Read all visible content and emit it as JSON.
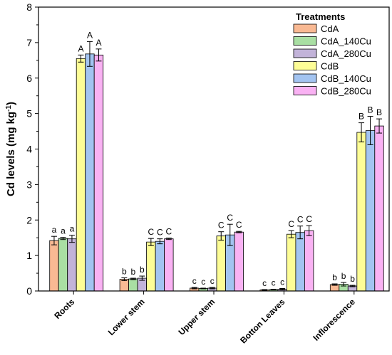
{
  "chart_data": {
    "type": "bar",
    "title": "",
    "xlabel": "",
    "ylabel": "Cd levels (mg kg",
    "ylabel_sup": "-1",
    "ylabel_close": ")",
    "ylim": [
      0,
      8
    ],
    "yticks": [
      "0",
      "1",
      "2",
      "3",
      "4",
      "5",
      "6",
      "7",
      "8"
    ],
    "categories": [
      "Roots",
      "Lower stem",
      "Upper stem",
      "Botton Leaves",
      "Inflorescence"
    ],
    "legend_title": "Treatments",
    "legend_position": "top-right",
    "series": [
      {
        "name": "CdA",
        "color": "#f9b993",
        "values": [
          1.42,
          0.33,
          0.08,
          0.03,
          0.18
        ],
        "errors": [
          0.12,
          0.04,
          0.02,
          0.01,
          0.02
        ],
        "labels": [
          "a",
          "b",
          "c",
          "c",
          "b"
        ]
      },
      {
        "name": "CdA_140Cu",
        "color": "#a9dfa3",
        "values": [
          1.48,
          0.34,
          0.07,
          0.04,
          0.19
        ],
        "errors": [
          0.03,
          0.02,
          0.01,
          0.01,
          0.05
        ],
        "labels": [
          "a",
          "b",
          "c",
          "c",
          "b"
        ]
      },
      {
        "name": "CdA_280Cu",
        "color": "#c2b3d9",
        "values": [
          1.47,
          0.36,
          0.08,
          0.05,
          0.14
        ],
        "errors": [
          0.1,
          0.06,
          0.02,
          0.02,
          0.02
        ],
        "labels": [
          "a",
          "b",
          "c",
          "c",
          "b"
        ]
      },
      {
        "name": "CdB",
        "color": "#fdfd96",
        "values": [
          6.55,
          1.38,
          1.55,
          1.6,
          4.47
        ],
        "errors": [
          0.1,
          0.1,
          0.12,
          0.1,
          0.27
        ],
        "labels": [
          "A",
          "C",
          "C",
          "C",
          "B"
        ]
      },
      {
        "name": "CdB_140Cu",
        "color": "#a3c4f1",
        "values": [
          6.68,
          1.4,
          1.58,
          1.65,
          4.52
        ],
        "errors": [
          0.35,
          0.07,
          0.3,
          0.18,
          0.4
        ],
        "labels": [
          "A",
          "C",
          "C",
          "C",
          "B"
        ]
      },
      {
        "name": "CdB_280Cu",
        "color": "#f9b2f3",
        "values": [
          6.65,
          1.47,
          1.66,
          1.7,
          4.65
        ],
        "errors": [
          0.17,
          0.02,
          0.02,
          0.14,
          0.2
        ],
        "labels": [
          "A",
          "C",
          "C",
          "C",
          "B"
        ]
      }
    ]
  }
}
